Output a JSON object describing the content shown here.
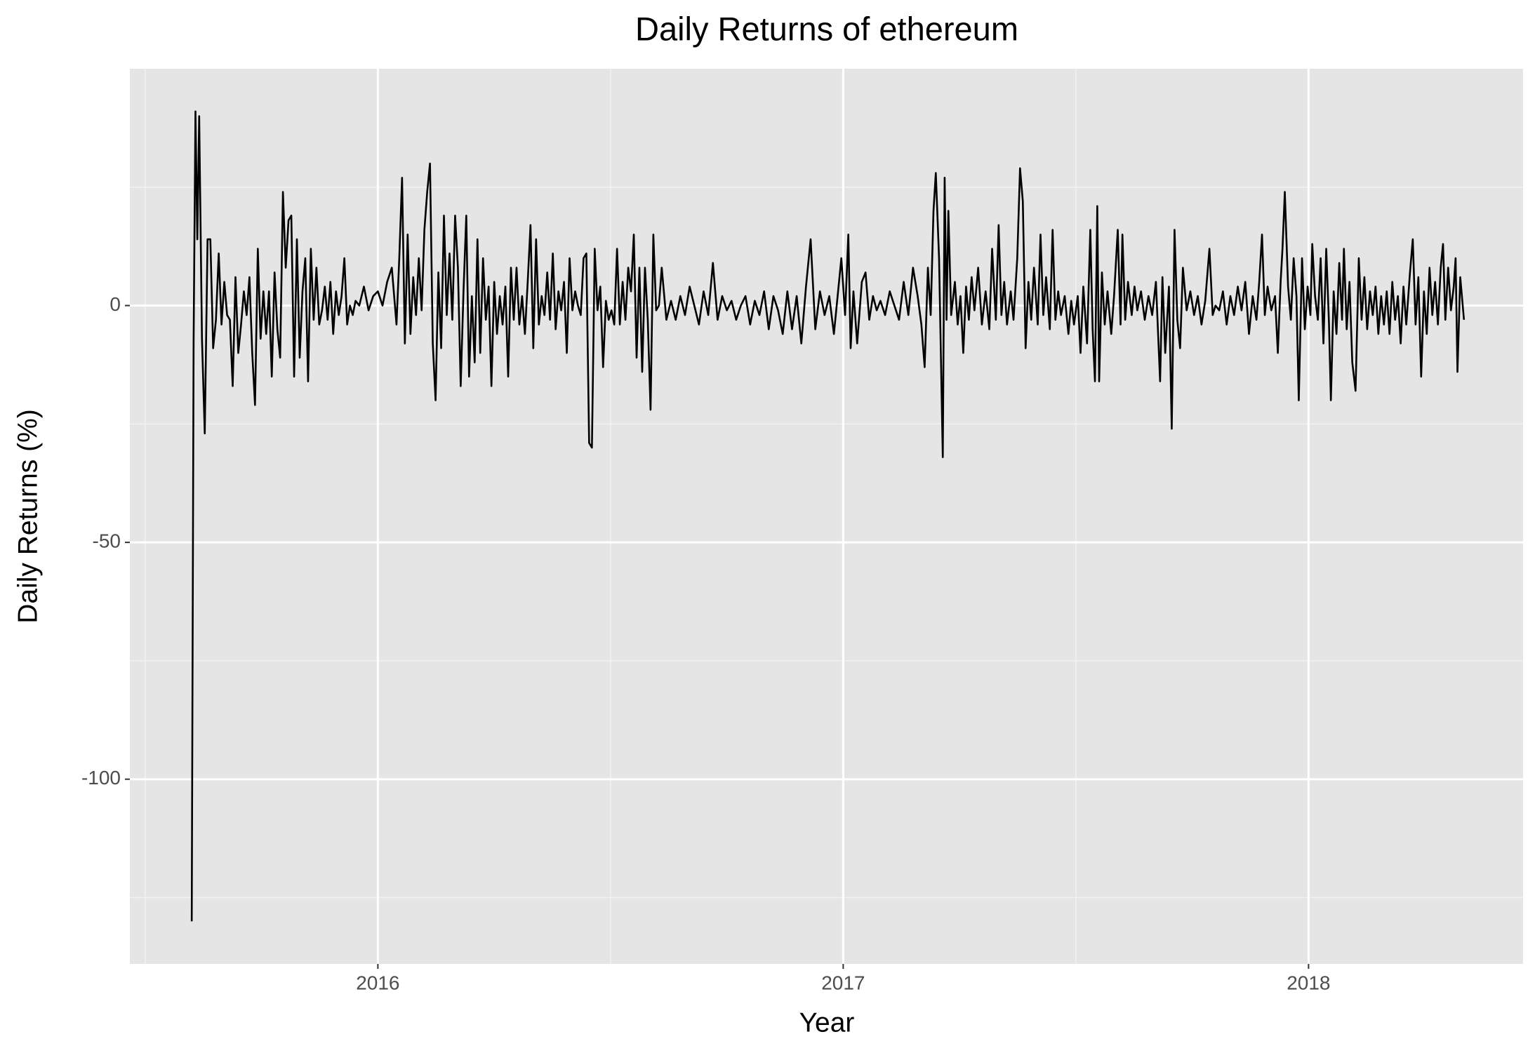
{
  "chart_data": {
    "type": "line",
    "title": "Daily Returns of ethereum",
    "x_label": "Year",
    "y_label": "Daily Returns (%)",
    "color": "#000000",
    "grid": true,
    "xlim": [
      2015.467,
      2018.461
    ],
    "xticks": [
      2016,
      2017,
      2018
    ],
    "ylim": [
      -139,
      50
    ],
    "yticks": [
      -100,
      -50,
      0
    ],
    "x": [
      2015.6,
      2015.604,
      2015.608,
      2015.612,
      2015.616,
      2015.622,
      2015.628,
      2015.634,
      2015.64,
      2015.646,
      2015.652,
      2015.658,
      2015.664,
      2015.67,
      2015.676,
      2015.682,
      2015.688,
      2015.694,
      2015.7,
      2015.706,
      2015.712,
      2015.718,
      2015.724,
      2015.73,
      2015.736,
      2015.742,
      2015.748,
      2015.754,
      2015.76,
      2015.766,
      2015.772,
      2015.778,
      2015.784,
      2015.79,
      2015.796,
      2015.802,
      2015.808,
      2015.814,
      2015.82,
      2015.826,
      2015.832,
      2015.838,
      2015.844,
      2015.85,
      2015.856,
      2015.862,
      2015.868,
      2015.874,
      2015.88,
      2015.886,
      2015.892,
      2015.898,
      2015.904,
      2015.91,
      2015.916,
      2015.922,
      2015.928,
      2015.934,
      2015.94,
      2015.946,
      2015.952,
      2015.96,
      2015.97,
      2015.98,
      2015.99,
      2016.0,
      2016.01,
      2016.02,
      2016.03,
      2016.04,
      2016.046,
      2016.052,
      2016.058,
      2016.064,
      2016.07,
      2016.076,
      2016.082,
      2016.088,
      2016.094,
      2016.1,
      2016.106,
      2016.112,
      2016.118,
      2016.124,
      2016.13,
      2016.136,
      2016.142,
      2016.148,
      2016.154,
      2016.16,
      2016.166,
      2016.172,
      2016.178,
      2016.184,
      2016.19,
      2016.196,
      2016.202,
      2016.208,
      2016.214,
      2016.22,
      2016.226,
      2016.232,
      2016.238,
      2016.244,
      2016.25,
      2016.256,
      2016.262,
      2016.268,
      2016.274,
      2016.28,
      2016.286,
      2016.292,
      2016.298,
      2016.304,
      2016.31,
      2016.316,
      2016.322,
      2016.328,
      2016.334,
      2016.34,
      2016.346,
      2016.352,
      2016.358,
      2016.364,
      2016.37,
      2016.376,
      2016.382,
      2016.388,
      2016.394,
      2016.4,
      2016.406,
      2016.412,
      2016.418,
      2016.424,
      2016.43,
      2016.436,
      2016.442,
      2016.448,
      2016.454,
      2016.46,
      2016.466,
      2016.472,
      2016.478,
      2016.484,
      2016.49,
      2016.496,
      2016.502,
      2016.508,
      2016.514,
      2016.52,
      2016.526,
      2016.532,
      2016.538,
      2016.544,
      2016.55,
      2016.556,
      2016.562,
      2016.568,
      2016.574,
      2016.58,
      2016.586,
      2016.592,
      2016.598,
      2016.604,
      2016.61,
      2016.62,
      2016.63,
      2016.64,
      2016.65,
      2016.66,
      2016.67,
      2016.68,
      2016.69,
      2016.7,
      2016.71,
      2016.72,
      2016.73,
      2016.74,
      2016.75,
      2016.76,
      2016.77,
      2016.78,
      2016.79,
      2016.8,
      2016.81,
      2016.82,
      2016.83,
      2016.84,
      2016.85,
      2016.86,
      2016.87,
      2016.88,
      2016.89,
      2016.9,
      2016.91,
      2016.92,
      2016.93,
      2016.94,
      2016.95,
      2016.96,
      2016.97,
      2016.98,
      2016.99,
      2016.996,
      2017.004,
      2017.011,
      2017.016,
      2017.022,
      2017.03,
      2017.04,
      2017.048,
      2017.056,
      2017.064,
      2017.072,
      2017.08,
      2017.09,
      2017.1,
      2017.11,
      2017.12,
      2017.13,
      2017.14,
      2017.15,
      2017.16,
      2017.168,
      2017.175,
      2017.182,
      2017.188,
      2017.194,
      2017.199,
      2017.206,
      2017.214,
      2017.218,
      2017.222,
      2017.226,
      2017.232,
      2017.24,
      2017.246,
      2017.252,
      2017.258,
      2017.264,
      2017.27,
      2017.276,
      2017.282,
      2017.29,
      2017.298,
      2017.306,
      2017.314,
      2017.32,
      2017.328,
      2017.334,
      2017.34,
      2017.346,
      2017.352,
      2017.36,
      2017.366,
      2017.374,
      2017.38,
      2017.386,
      2017.392,
      2017.398,
      2017.404,
      2017.41,
      2017.418,
      2017.424,
      2017.43,
      2017.436,
      2017.444,
      2017.45,
      2017.456,
      2017.462,
      2017.468,
      2017.476,
      2017.484,
      2017.49,
      2017.496,
      2017.504,
      2017.51,
      2017.516,
      2017.524,
      2017.531,
      2017.536,
      2017.541,
      2017.546,
      2017.55,
      2017.556,
      2017.562,
      2017.568,
      2017.576,
      2017.582,
      2017.59,
      2017.596,
      2017.6,
      2017.606,
      2017.612,
      2017.62,
      2017.626,
      2017.632,
      2017.64,
      2017.648,
      2017.656,
      2017.664,
      2017.672,
      2017.681,
      2017.686,
      2017.692,
      2017.7,
      2017.706,
      2017.712,
      2017.718,
      2017.724,
      2017.73,
      2017.738,
      2017.746,
      2017.754,
      2017.762,
      2017.77,
      2017.778,
      2017.787,
      2017.794,
      2017.8,
      2017.808,
      2017.816,
      2017.824,
      2017.832,
      2017.84,
      2017.848,
      2017.856,
      2017.864,
      2017.872,
      2017.88,
      2017.888,
      2017.894,
      2017.9,
      2017.906,
      2017.912,
      2017.92,
      2017.928,
      2017.934,
      2017.94,
      2017.944,
      2017.949,
      2017.956,
      2017.962,
      2017.968,
      2017.974,
      2017.979,
      2017.986,
      2017.992,
      2017.998,
      2018.004,
      2018.008,
      2018.014,
      2018.02,
      2018.026,
      2018.032,
      2018.038,
      2018.044,
      2018.048,
      2018.054,
      2018.06,
      2018.066,
      2018.072,
      2018.076,
      2018.082,
      2018.088,
      2018.094,
      2018.101,
      2018.108,
      2018.114,
      2018.12,
      2018.126,
      2018.132,
      2018.138,
      2018.144,
      2018.15,
      2018.156,
      2018.162,
      2018.168,
      2018.174,
      2018.18,
      2018.186,
      2018.192,
      2018.198,
      2018.204,
      2018.21,
      2018.218,
      2018.224,
      2018.23,
      2018.236,
      2018.242,
      2018.248,
      2018.254,
      2018.26,
      2018.266,
      2018.272,
      2018.278,
      2018.284,
      2018.289,
      2018.294,
      2018.3,
      2018.306,
      2018.312,
      2018.316,
      2018.32,
      2018.326,
      2018.334
    ],
    "values": [
      -130,
      -8,
      41,
      14,
      40,
      -7,
      -27,
      14,
      14,
      -9,
      -3,
      11,
      -4,
      5,
      -2,
      -3,
      -17,
      6,
      -10,
      -4,
      3,
      -2,
      6,
      -10,
      -21,
      12,
      -7,
      3,
      -6,
      3,
      -15,
      7,
      -5,
      -11,
      24,
      8,
      18,
      19,
      -15,
      14,
      -11,
      3,
      10,
      -16,
      12,
      -3,
      8,
      -4,
      -1,
      4,
      -3,
      5,
      -6,
      3,
      -2,
      2,
      10,
      -4,
      0,
      -2,
      1,
      0,
      4,
      -1,
      2,
      3,
      0,
      5,
      8,
      -4,
      10,
      27,
      -8,
      15,
      -6,
      6,
      -2,
      10,
      -1,
      16,
      24,
      30,
      -8,
      -20,
      7,
      -9,
      19,
      -2,
      11,
      -3,
      19,
      8,
      -17,
      3,
      19,
      -15,
      2,
      -12,
      14,
      -10,
      10,
      -3,
      4,
      -17,
      5,
      -6,
      2,
      -4,
      4,
      -15,
      8,
      -3,
      8,
      -4,
      2,
      -6,
      5,
      17,
      -9,
      14,
      -4,
      2,
      -2,
      7,
      -3,
      11,
      -5,
      3,
      -1,
      5,
      -10,
      10,
      -1,
      3,
      0,
      -2,
      10,
      11,
      -29,
      -30,
      12,
      -1,
      4,
      -13,
      1,
      -3,
      -1,
      -4,
      12,
      -4,
      5,
      -3,
      8,
      3,
      15,
      -11,
      8,
      -14,
      8,
      -3,
      -22,
      15,
      -1,
      0,
      8,
      -3,
      1,
      -3,
      2,
      -2,
      4,
      0,
      -4,
      3,
      -2,
      9,
      -3,
      2,
      -1,
      1,
      -3,
      0,
      2,
      -4,
      1,
      -2,
      3,
      -5,
      2,
      -1,
      -6,
      3,
      -5,
      2,
      -8,
      4,
      14,
      -5,
      3,
      -2,
      2,
      -6,
      4,
      10,
      -2,
      15,
      -9,
      3,
      -8,
      5,
      7,
      -3,
      2,
      -1,
      1,
      -2,
      3,
      0,
      -3,
      5,
      -2,
      8,
      2,
      -4,
      -13,
      8,
      -2,
      20,
      28,
      10,
      -32,
      27,
      -3,
      20,
      -2,
      5,
      -4,
      2,
      -10,
      4,
      -3,
      6,
      -1,
      8,
      -4,
      3,
      -5,
      12,
      -3,
      17,
      -2,
      5,
      -4,
      3,
      -3,
      10,
      29,
      22,
      -9,
      5,
      -3,
      8,
      -4,
      15,
      -2,
      6,
      -5,
      16,
      -3,
      3,
      -2,
      2,
      -6,
      1,
      -4,
      2,
      -10,
      4,
      -8,
      16,
      -5,
      -16,
      21,
      -16,
      7,
      -4,
      3,
      -6,
      2,
      16,
      -4,
      15,
      -3,
      5,
      -2,
      4,
      -1,
      3,
      -3,
      2,
      -2,
      5,
      -16,
      6,
      -10,
      4,
      -26,
      16,
      -3,
      -9,
      8,
      -1,
      3,
      -2,
      2,
      -4,
      1,
      12,
      -2,
      0,
      -1,
      3,
      -4,
      2,
      -2,
      4,
      -1,
      5,
      -6,
      2,
      -3,
      5,
      15,
      -2,
      4,
      -1,
      2,
      -10,
      5,
      12,
      24,
      4,
      -3,
      10,
      2,
      -20,
      10,
      -5,
      4,
      -2,
      13,
      2,
      -3,
      10,
      -8,
      12,
      -4,
      -20,
      3,
      -6,
      9,
      -3,
      12,
      -5,
      5,
      -12,
      -18,
      10,
      -3,
      6,
      -5,
      3,
      -2,
      4,
      -6,
      2,
      -4,
      3,
      -6,
      5,
      -3,
      2,
      -8,
      4,
      -4,
      7,
      14,
      -4,
      6,
      -15,
      3,
      -6,
      8,
      -2,
      5,
      -4,
      8,
      13,
      -3,
      8,
      -1,
      4,
      10,
      -14,
      6,
      -3
    ]
  }
}
